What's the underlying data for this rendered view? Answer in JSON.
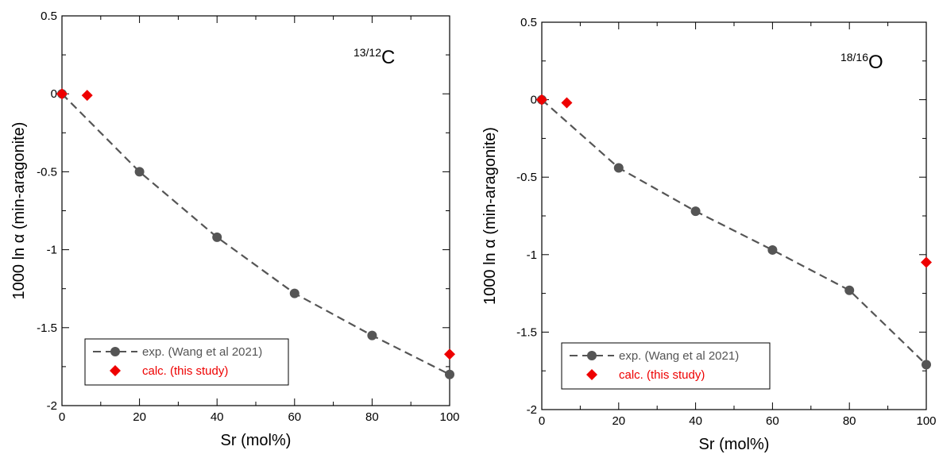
{
  "chart_data": [
    {
      "type": "line",
      "isotope_label": {
        "superscript": "13/12",
        "element": "C"
      },
      "xlabel": "Sr (mol%)",
      "ylabel": "1000 ln α (min-aragonite)",
      "xlim": [
        0,
        100
      ],
      "ylim": [
        -2,
        0.5
      ],
      "xticks": [
        "0",
        "20",
        "40",
        "60",
        "80",
        "100"
      ],
      "yticks": [
        "-2",
        "-1.5",
        "-1",
        "-0.5",
        "0",
        "0.5"
      ],
      "legend_position": "bottom-left",
      "series": [
        {
          "name": "exp. (Wang et al 2021)",
          "marker": "circle",
          "line": "dashed",
          "color": "#555555",
          "x": [
            0,
            20,
            40,
            60,
            80,
            100
          ],
          "y": [
            0,
            -0.5,
            -0.92,
            -1.28,
            -1.55,
            -1.8
          ]
        },
        {
          "name": "calc. (this study)",
          "marker": "diamond",
          "line": "none",
          "color": "#ee0000",
          "x": [
            0,
            6.5,
            100
          ],
          "y": [
            0,
            -0.01,
            -1.67
          ]
        }
      ]
    },
    {
      "type": "line",
      "isotope_label": {
        "superscript": "18/16",
        "element": "O"
      },
      "xlabel": "Sr (mol%)",
      "ylabel": "1000 ln α (min-aragonite)",
      "xlim": [
        0,
        100
      ],
      "ylim": [
        -2,
        0.5
      ],
      "xticks": [
        "0",
        "20",
        "40",
        "60",
        "80",
        "100"
      ],
      "yticks": [
        "-2",
        "-1.5",
        "-1",
        "-0.5",
        "0",
        "0.5"
      ],
      "legend_position": "bottom-left",
      "series": [
        {
          "name": "exp. (Wang et al 2021)",
          "marker": "circle",
          "line": "dashed",
          "color": "#555555",
          "x": [
            0,
            20,
            40,
            60,
            80,
            100
          ],
          "y": [
            0,
            -0.44,
            -0.72,
            -0.97,
            -1.23,
            -1.71
          ]
        },
        {
          "name": "calc. (this study)",
          "marker": "diamond",
          "line": "none",
          "color": "#ee0000",
          "x": [
            0,
            6.5,
            100
          ],
          "y": [
            0,
            -0.02,
            -1.05
          ]
        }
      ]
    }
  ]
}
